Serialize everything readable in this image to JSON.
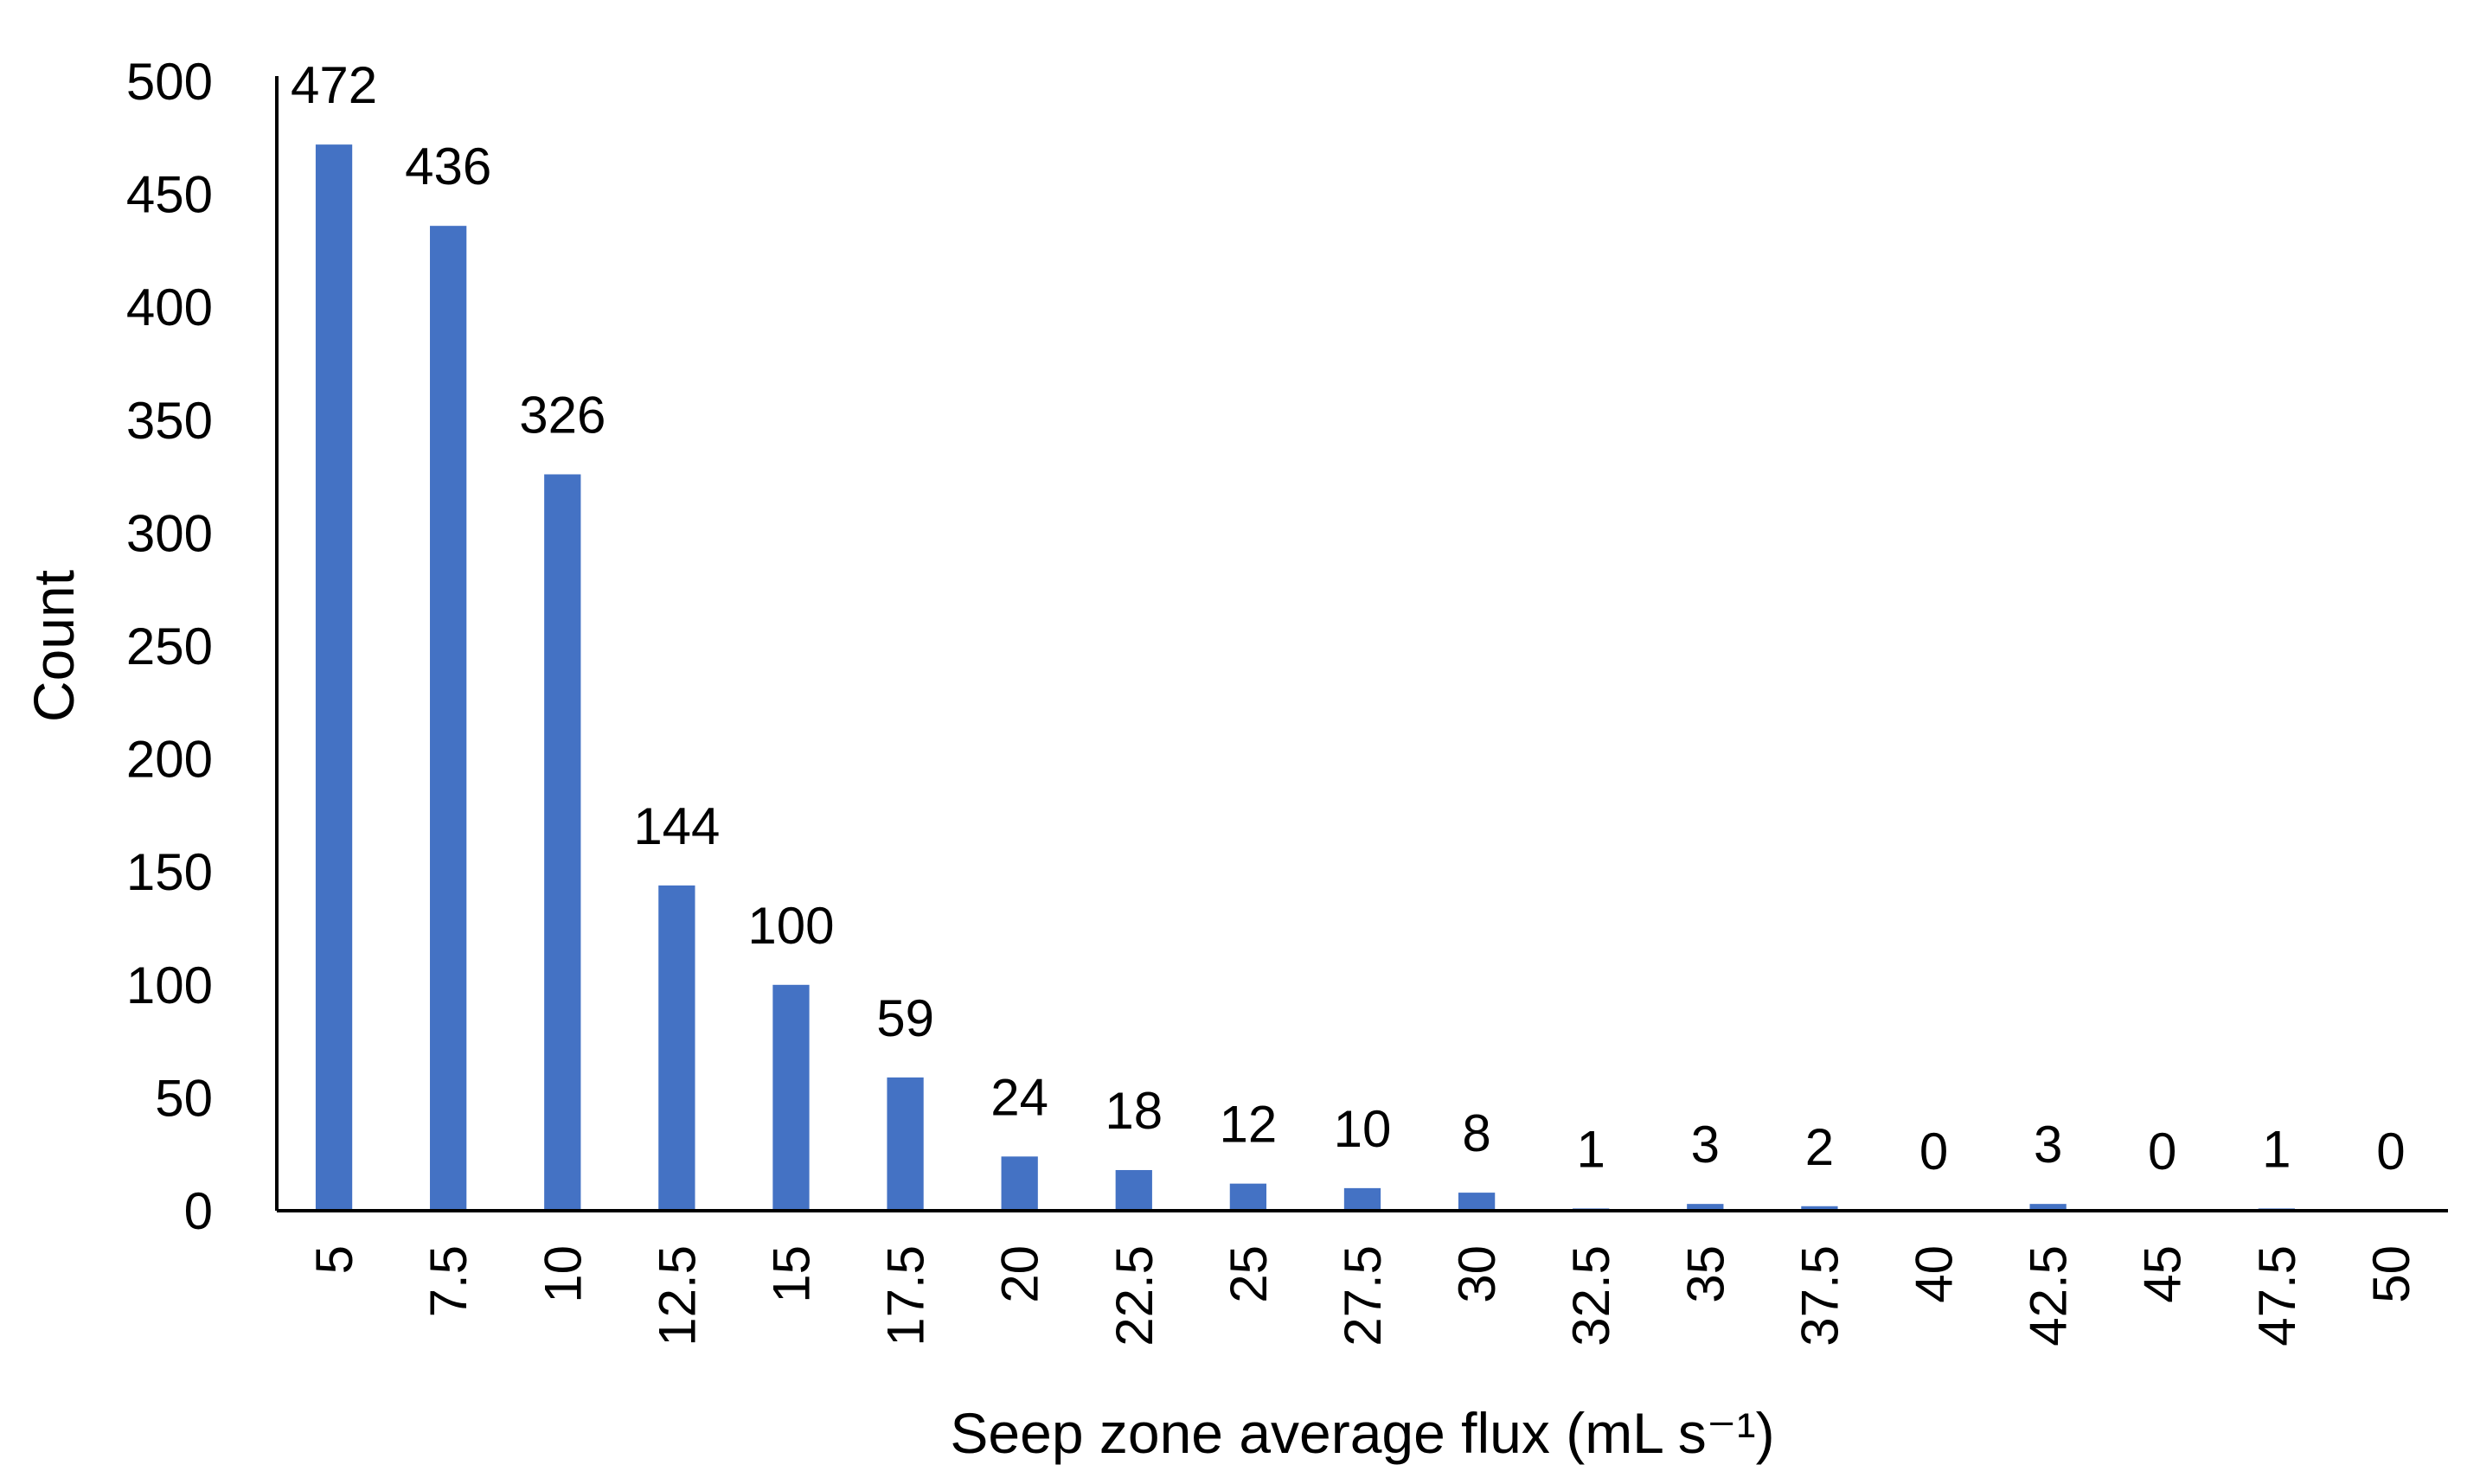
{
  "chart_data": {
    "type": "bar",
    "categories": [
      "5",
      "7.5",
      "10",
      "12.5",
      "15",
      "17.5",
      "20",
      "22.5",
      "25",
      "27.5",
      "30",
      "32.5",
      "35",
      "37.5",
      "40",
      "42.5",
      "45",
      "47.5",
      "50"
    ],
    "values": [
      472,
      436,
      326,
      144,
      100,
      59,
      24,
      18,
      12,
      10,
      8,
      1,
      3,
      2,
      0,
      3,
      0,
      1,
      0
    ],
    "data_labels": [
      "472",
      "436",
      "326",
      "144",
      "100",
      "59",
      "24",
      "18",
      "12",
      "10",
      "8",
      "1",
      "3",
      "2",
      "0",
      "3",
      "0",
      "1",
      "0"
    ],
    "xlabel": "Seep zone average flux (mL s⁻¹)",
    "ylabel": "Count",
    "ylim": [
      0,
      500
    ],
    "yticks": [
      0,
      50,
      100,
      150,
      200,
      250,
      300,
      350,
      400,
      450,
      500
    ],
    "ytick_labels": [
      "0",
      "50",
      "100",
      "150",
      "200",
      "250",
      "300",
      "350",
      "400",
      "450",
      "500"
    ],
    "grid": false,
    "legend": "none",
    "bar_color": "#4472C4",
    "axis_color": "#000000"
  }
}
